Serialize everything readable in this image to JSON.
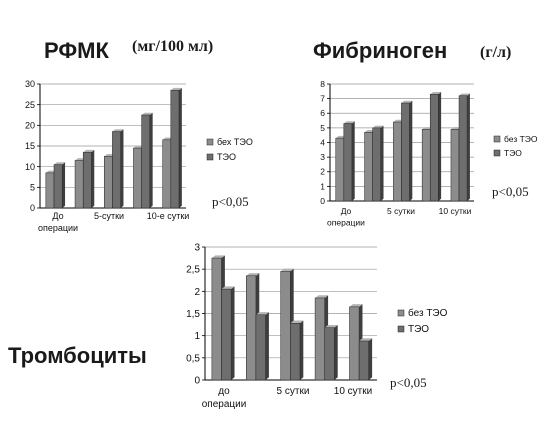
{
  "labels": {
    "rfmk_title": "РФМК",
    "rfmk_units": "(мг/100 мл)",
    "fib_title": "Фибриноген",
    "fib_units": "(г/л)",
    "plt_title": "Тромбоциты"
  },
  "colors": {
    "series1": "#8c8c8c",
    "series2": "#6e6e6e",
    "axis": "#000000",
    "grid": "#9a9a9a"
  },
  "chart_data": [
    {
      "type": "bar",
      "categories": [
        "",
        "",
        "",
        "",
        ""
      ],
      "category_axis_labels": [
        [
          "До",
          "операции"
        ],
        [
          "5-сутки"
        ],
        [
          "10-е сутки"
        ]
      ],
      "series": [
        {
          "name": "бех ТЭО",
          "values": [
            8.5,
            11.5,
            12.5,
            14.5,
            16.5
          ]
        },
        {
          "name": "ТЭО",
          "values": [
            10.5,
            13.5,
            18.5,
            22.5,
            28.5
          ]
        }
      ],
      "ylim": [
        0,
        30
      ],
      "yticks": [
        0,
        5,
        10,
        15,
        20,
        25,
        30
      ],
      "grid": true,
      "legend_position": "right",
      "note": "p<0,05"
    },
    {
      "type": "bar",
      "categories": [
        "",
        "",
        "",
        "",
        ""
      ],
      "category_axis_labels": [
        [
          "До",
          "операции"
        ],
        [
          "5 сутки"
        ],
        [
          "10 сутки"
        ]
      ],
      "series": [
        {
          "name": "без ТЭО",
          "values": [
            4.3,
            4.7,
            5.4,
            4.9,
            4.9
          ]
        },
        {
          "name": "ТЭО",
          "values": [
            5.3,
            5.0,
            6.7,
            7.3,
            7.2
          ]
        }
      ],
      "ylim": [
        0,
        8
      ],
      "yticks": [
        0,
        1,
        2,
        3,
        4,
        5,
        6,
        7,
        8
      ],
      "grid": true,
      "legend_position": "right",
      "note": "p<0,05"
    },
    {
      "type": "bar",
      "categories": [
        "",
        "",
        "",
        "",
        ""
      ],
      "category_axis_labels": [
        [
          "до",
          "операции"
        ],
        [
          "5 сутки"
        ],
        [
          "10 сутки"
        ]
      ],
      "series": [
        {
          "name": "без ТЭО",
          "values": [
            2.75,
            2.35,
            2.45,
            1.85,
            1.65
          ]
        },
        {
          "name": "ТЭО",
          "values": [
            2.05,
            1.47,
            1.28,
            1.18,
            0.88
          ]
        }
      ],
      "ylim": [
        0,
        3
      ],
      "yticks": [
        "0",
        "0,5",
        "1",
        "1,5",
        "2",
        "2,5",
        "3"
      ],
      "grid": true,
      "legend_position": "right",
      "note": "p<0,05"
    }
  ]
}
